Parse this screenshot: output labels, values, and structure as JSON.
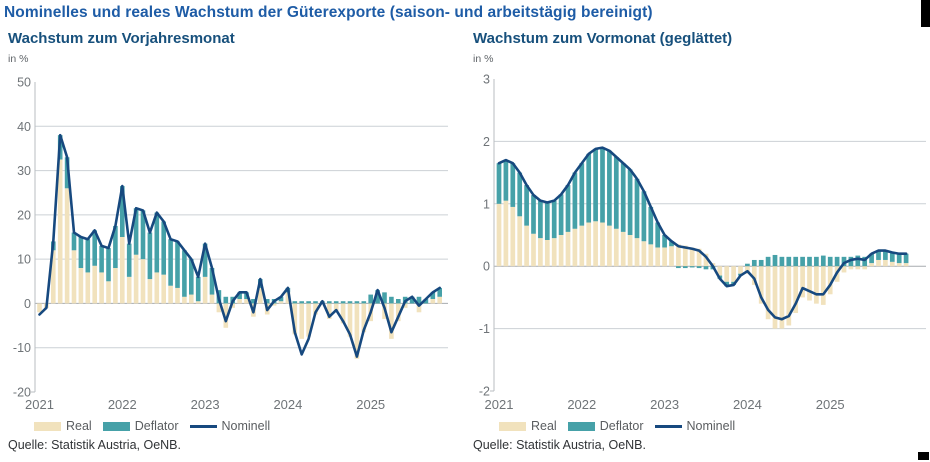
{
  "title": "Nominelles und reales Wachstum der Güterexporte (saison- und arbeitstägig bereinigt)",
  "source": "Quelle: Statistik Austria, OeNB.",
  "legend": {
    "real": "Real",
    "deflator": "Deflator",
    "nominell": "Nominell"
  },
  "colors": {
    "real": "#f1e2bd",
    "deflator": "#46a1a8",
    "nominell": "#17497f",
    "title_blue": "#1e5ca6",
    "panel_title": "#17507c",
    "grid_line": "#ccd1d5",
    "zero_line": "#a7abaf",
    "axis_line": "#b9bec2",
    "tick_text": "#6f7478"
  },
  "chart_data": [
    {
      "type": "bar+line",
      "panel_title": "Wachstum zum Vorjahresmonat",
      "unit_label": "in %",
      "x_start": "2021-01",
      "x_end": "2025-11",
      "frequency": "monthly",
      "x_year_labels": [
        "2021",
        "2022",
        "2023",
        "2024",
        "2025"
      ],
      "ylim": [
        -20,
        50
      ],
      "yticks": [
        50,
        40,
        30,
        20,
        10,
        0,
        -10,
        -20
      ],
      "grid": true,
      "legend_position": "bottom",
      "series": {
        "real": [
          -2.0,
          -1.0,
          12.0,
          32.5,
          26.0,
          12.0,
          8.0,
          7.0,
          8.5,
          7.0,
          5.0,
          8.0,
          15.0,
          6.0,
          11.0,
          10.0,
          5.5,
          7.0,
          6.5,
          4.0,
          3.5,
          1.5,
          2.0,
          0.5,
          6.0,
          2.0,
          -2.0,
          -5.5,
          -1.0,
          1.0,
          1.0,
          -3.0,
          3.5,
          -2.5,
          -0.5,
          0.5,
          2.5,
          -7.0,
          -8.0,
          -7.5,
          -2.5,
          0.0,
          -3.5,
          -2.0,
          -4.5,
          -7.5,
          -12.5,
          -6.5,
          -4.0,
          0.0,
          -3.5,
          -8.0,
          -4.0,
          -1.0,
          0.0,
          -2.0,
          0.0,
          1.0,
          1.5
        ],
        "deflator": [
          0.0,
          0.0,
          2.0,
          5.5,
          7.0,
          4.0,
          7.0,
          7.5,
          8.0,
          6.0,
          7.5,
          9.5,
          11.5,
          7.5,
          10.5,
          11.0,
          10.5,
          13.5,
          12.0,
          10.5,
          10.5,
          10.5,
          8.0,
          5.5,
          7.5,
          6.0,
          3.0,
          1.5,
          1.5,
          1.5,
          1.5,
          1.0,
          2.0,
          1.0,
          1.0,
          1.0,
          1.0,
          0.5,
          0.5,
          0.5,
          0.5,
          0.5,
          0.5,
          0.5,
          0.5,
          0.5,
          0.5,
          0.5,
          2.0,
          3.0,
          2.5,
          1.5,
          1.0,
          1.5,
          1.5,
          1.5,
          1.0,
          1.5,
          2.0
        ],
        "nominell": [
          -2.5,
          -1.0,
          14.0,
          38.0,
          33.0,
          16.0,
          15.0,
          14.5,
          16.5,
          13.0,
          12.5,
          17.5,
          26.5,
          13.5,
          21.5,
          21.0,
          16.0,
          20.5,
          18.5,
          14.5,
          14.0,
          12.0,
          10.0,
          6.0,
          13.5,
          8.0,
          1.0,
          -4.0,
          0.5,
          2.5,
          2.5,
          -2.0,
          5.5,
          -1.5,
          0.5,
          1.5,
          3.5,
          -6.5,
          -11.5,
          -8.0,
          -2.0,
          0.5,
          -3.0,
          -1.5,
          -4.0,
          -7.0,
          -12.0,
          -6.0,
          -2.0,
          3.0,
          -1.0,
          -6.5,
          -3.0,
          0.5,
          1.5,
          -0.5,
          1.0,
          2.5,
          3.5
        ]
      }
    },
    {
      "type": "bar+line",
      "panel_title": "Wachstum zum Vormonat (geglättet)",
      "unit_label": "in %",
      "x_start": "2021-01",
      "x_end": "2025-12",
      "frequency": "monthly",
      "x_year_labels": [
        "2021",
        "2022",
        "2023",
        "2024",
        "2025"
      ],
      "ylim": [
        -2,
        3
      ],
      "yticks": [
        3,
        2,
        1,
        0,
        -1,
        -2
      ],
      "grid": true,
      "legend_position": "bottom",
      "series": {
        "real": [
          1.0,
          1.05,
          0.95,
          0.8,
          0.65,
          0.52,
          0.45,
          0.42,
          0.45,
          0.5,
          0.55,
          0.6,
          0.65,
          0.7,
          0.72,
          0.7,
          0.65,
          0.6,
          0.55,
          0.5,
          0.45,
          0.4,
          0.35,
          0.3,
          0.3,
          0.32,
          0.35,
          0.33,
          0.3,
          0.28,
          0.2,
          0.05,
          -0.15,
          -0.25,
          -0.25,
          -0.12,
          -0.12,
          -0.3,
          -0.6,
          -0.85,
          -1.0,
          -1.0,
          -0.95,
          -0.75,
          -0.5,
          -0.55,
          -0.6,
          -0.62,
          -0.45,
          -0.25,
          -0.1,
          -0.05,
          -0.05,
          -0.05,
          0.05,
          0.1,
          0.1,
          0.07,
          0.05,
          0.05
        ],
        "deflator": [
          0.65,
          0.65,
          0.7,
          0.7,
          0.65,
          0.62,
          0.6,
          0.6,
          0.6,
          0.65,
          0.75,
          0.9,
          1.0,
          1.1,
          1.16,
          1.2,
          1.2,
          1.15,
          1.1,
          1.05,
          0.95,
          0.8,
          0.6,
          0.4,
          0.2,
          0.08,
          -0.03,
          -0.03,
          -0.02,
          -0.03,
          -0.05,
          -0.05,
          -0.05,
          -0.07,
          -0.05,
          -0.03,
          0.04,
          0.1,
          0.1,
          0.15,
          0.18,
          0.15,
          0.15,
          0.15,
          0.15,
          0.15,
          0.15,
          0.17,
          0.15,
          0.15,
          0.15,
          0.15,
          0.17,
          0.15,
          0.15,
          0.15,
          0.15,
          0.15,
          0.15,
          0.15
        ],
        "nominell": [
          1.65,
          1.7,
          1.65,
          1.5,
          1.3,
          1.14,
          1.05,
          1.02,
          1.05,
          1.15,
          1.3,
          1.5,
          1.65,
          1.8,
          1.88,
          1.9,
          1.85,
          1.75,
          1.65,
          1.55,
          1.4,
          1.2,
          0.95,
          0.7,
          0.5,
          0.4,
          0.32,
          0.3,
          0.28,
          0.25,
          0.15,
          0.0,
          -0.2,
          -0.32,
          -0.3,
          -0.15,
          -0.08,
          -0.2,
          -0.5,
          -0.7,
          -0.82,
          -0.85,
          -0.8,
          -0.6,
          -0.35,
          -0.4,
          -0.45,
          -0.45,
          -0.3,
          -0.1,
          0.05,
          0.1,
          0.12,
          0.1,
          0.2,
          0.25,
          0.25,
          0.22,
          0.2,
          0.2
        ]
      }
    }
  ]
}
